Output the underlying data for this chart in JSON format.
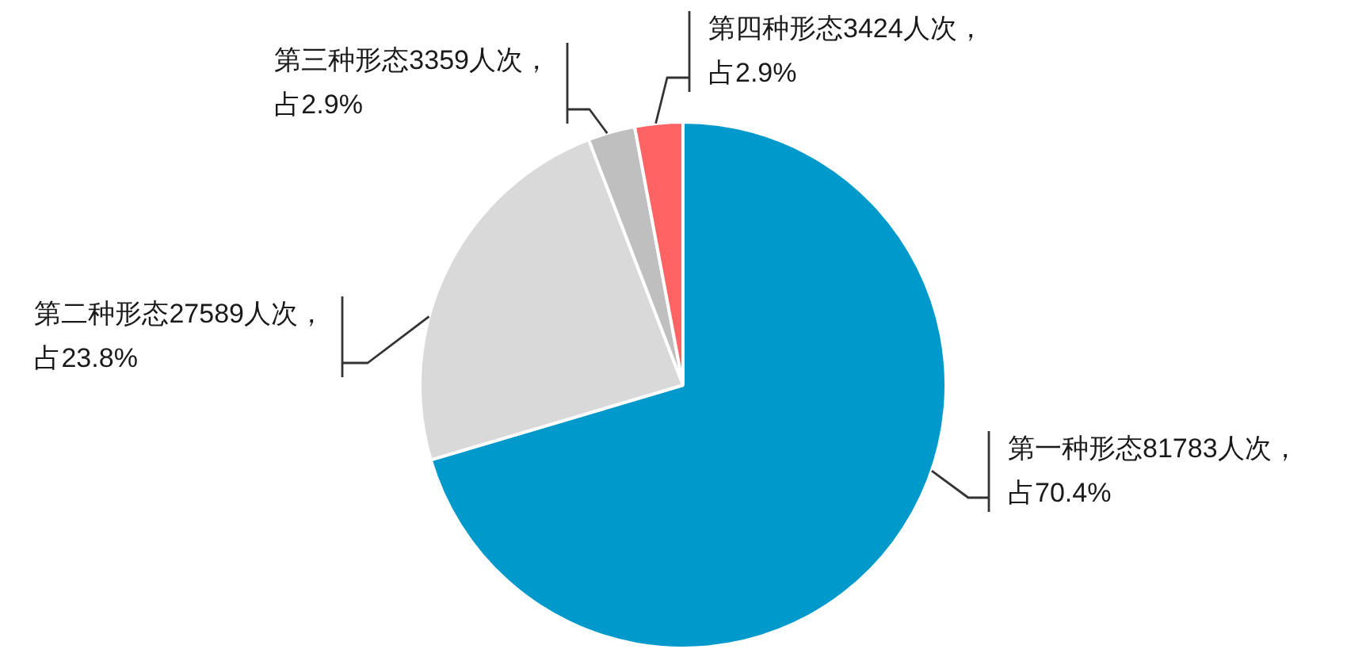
{
  "chart_data": {
    "type": "pie",
    "categories": [
      "第一种形态",
      "第二种形态",
      "第三种形态",
      "第四种形态"
    ],
    "values": [
      81783,
      27589,
      3359,
      3424
    ],
    "colors": [
      "#0099cc",
      "#d9d9d9",
      "#bfbfbf",
      "#ff6363"
    ],
    "value_labels": [
      "81783人次，占70.4%",
      "27589人次，占23.8%",
      "3359人次，占2.9%",
      "3424人次，占2.9%"
    ],
    "legend": false
  }
}
